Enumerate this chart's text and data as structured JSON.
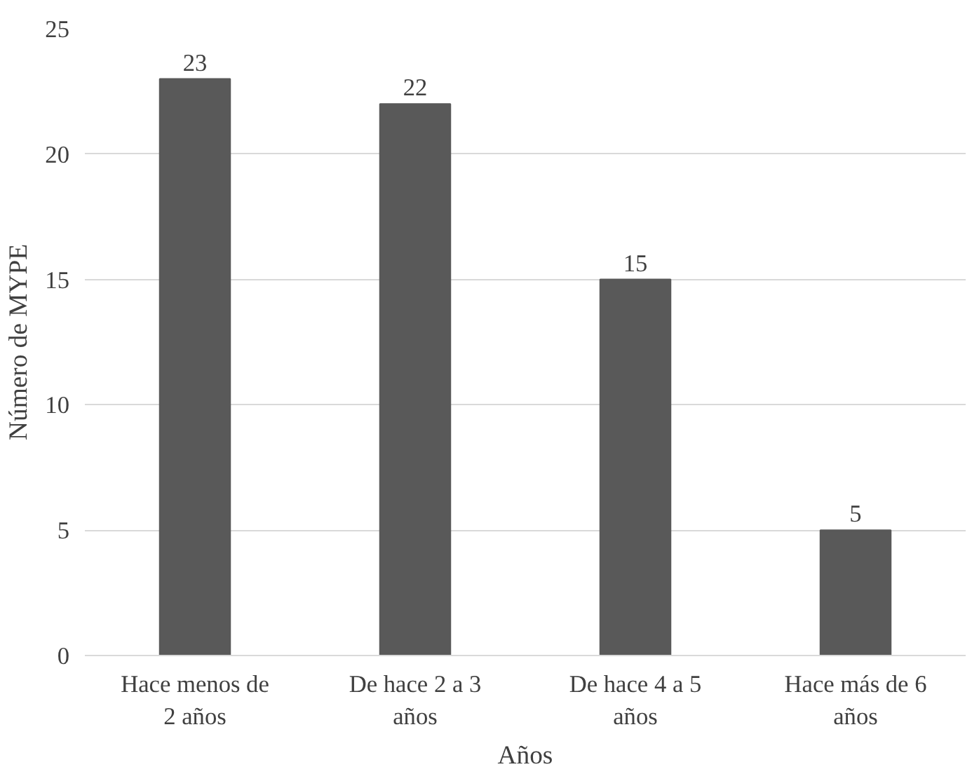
{
  "chart_data": {
    "type": "bar",
    "categories": [
      "Hace menos de 2 años",
      "De hace 2 a 3 años",
      "De hace 4 a 5 años",
      "Hace más de 6 años"
    ],
    "values": [
      23,
      22,
      15,
      5
    ],
    "color": "#595959",
    "xlabel": "Años",
    "ylabel": "Número de MYPE",
    "ylim": [
      0,
      25
    ],
    "yticks": [
      0,
      5,
      10,
      15,
      20,
      25
    ],
    "grid": "y",
    "data_labels": true
  }
}
